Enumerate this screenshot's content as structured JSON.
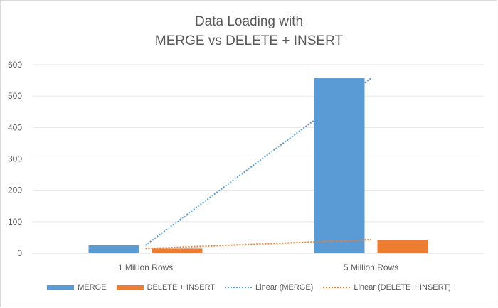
{
  "chart_data": {
    "type": "bar",
    "title_line1": "Data Loading with",
    "title_line2": "MERGE vs DELETE + INSERT",
    "categories": [
      "1 Million Rows",
      "5 Million Rows"
    ],
    "series": [
      {
        "name": "MERGE",
        "values": [
          25,
          557
        ],
        "color": "#5b9bd5"
      },
      {
        "name": "DELETE + INSERT",
        "values": [
          15,
          43
        ],
        "color": "#ed7d31"
      }
    ],
    "trendlines": [
      {
        "name": "Linear (MERGE)",
        "series": 0,
        "color": "#5b9bd5",
        "style": "dotted"
      },
      {
        "name": "Linear (DELETE + INSERT)",
        "series": 1,
        "color": "#ed7d31",
        "style": "dotted"
      }
    ],
    "ylim": [
      0,
      600
    ],
    "yticks": [
      0,
      100,
      200,
      300,
      400,
      500,
      600
    ],
    "grid": true,
    "legend": "bottom"
  }
}
